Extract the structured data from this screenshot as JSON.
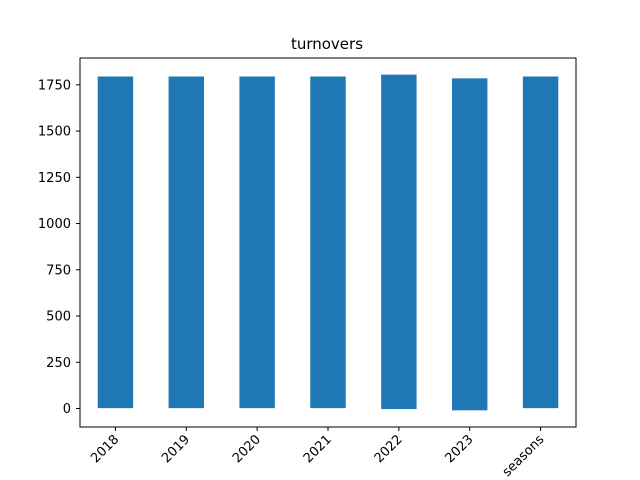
{
  "chart_data": {
    "type": "bar",
    "title": "turnovers",
    "xlabel": "",
    "ylabel": "",
    "categories": [
      "2018",
      "2019",
      "2020",
      "2021",
      "2022",
      "2023",
      "seasons"
    ],
    "values": [
      1795,
      1795,
      1795,
      1795,
      1805,
      1785,
      1795
    ],
    "bar_bottoms": [
      2,
      2,
      2,
      2,
      -3,
      -10,
      2
    ],
    "ylim": [
      -100,
      1895
    ],
    "yticks": [
      0,
      250,
      500,
      750,
      1000,
      1250,
      1500,
      1750
    ],
    "ytick_labels": [
      "0",
      "250",
      "500",
      "750",
      "1000",
      "1250",
      "1500",
      "1750"
    ],
    "x_tick_rotation_deg": 45,
    "grid": false,
    "legend": "none",
    "bar_color": "#1f77b4"
  }
}
